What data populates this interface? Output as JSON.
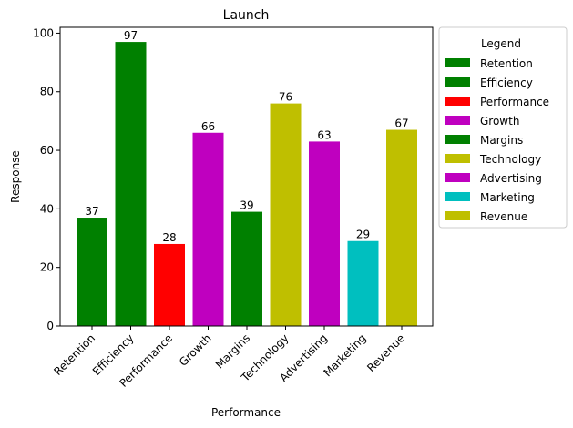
{
  "chart_data": {
    "type": "bar",
    "title": "Launch",
    "xlabel": "Performance",
    "ylabel": "Response",
    "ylim": [
      0,
      102
    ],
    "yticks": [
      0,
      20,
      40,
      60,
      80,
      100
    ],
    "grid": false,
    "categories": [
      "Retention",
      "Efficiency",
      "Performance",
      "Growth",
      "Margins",
      "Technology",
      "Advertising",
      "Marketing",
      "Revenue"
    ],
    "values": [
      37,
      97,
      28,
      66,
      39,
      76,
      63,
      29,
      67
    ],
    "colors": [
      "#008000",
      "#008000",
      "#ff0000",
      "#bf00bf",
      "#008000",
      "#bfbf00",
      "#bf00bf",
      "#00bfbf",
      "#bfbf00"
    ],
    "legend": {
      "title": "Legend",
      "placement": "outside-right",
      "entries": [
        "Retention",
        "Efficiency",
        "Performance",
        "Growth",
        "Margins",
        "Technology",
        "Advertising",
        "Marketing",
        "Revenue"
      ]
    }
  }
}
